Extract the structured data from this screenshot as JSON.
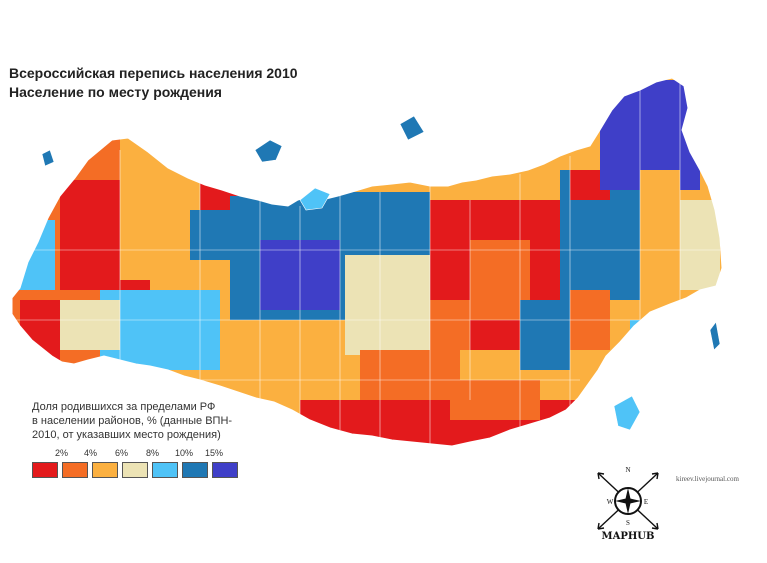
{
  "title": {
    "line1": "Всероссийская перепись населения 2010",
    "line2": "Население по месту рождения"
  },
  "legend": {
    "caption_line1": "Доля родившихся за пределами РФ",
    "caption_line2": "в населении районов, % (данные ВПН-",
    "caption_line3": "2010, от указавших место рождения)",
    "ticks": [
      "2%",
      "4%",
      "6%",
      "8%",
      "10%",
      "15%"
    ],
    "classes": [
      {
        "color": "#e31a1c",
        "range": "<2%"
      },
      {
        "color": "#f46d25",
        "range": "2–4%"
      },
      {
        "color": "#fbb040",
        "range": "4–6%"
      },
      {
        "color": "#ece3b5",
        "range": "6–8%"
      },
      {
        "color": "#4fc3f7",
        "range": "8–10%"
      },
      {
        "color": "#1f78b4",
        "range": "10–15%"
      },
      {
        "color": "#3f3fc8",
        "range": ">15%"
      }
    ]
  },
  "credit": "kireev.livejournal.com",
  "logo": {
    "name": "MAPHUB",
    "n": "N",
    "s": "S",
    "w": "W",
    "e": "E"
  }
}
